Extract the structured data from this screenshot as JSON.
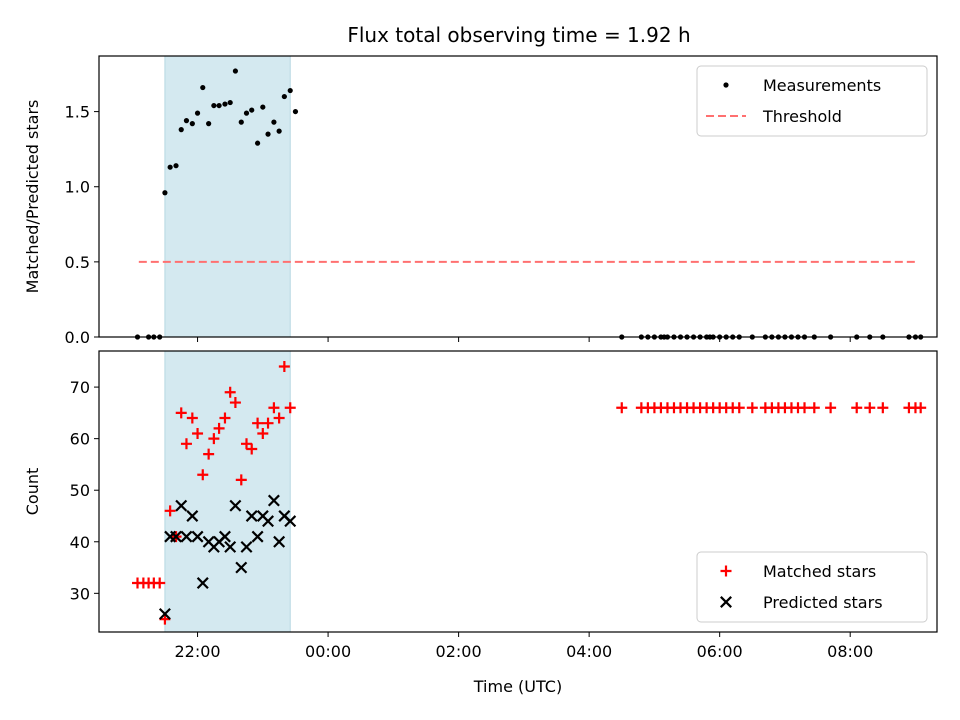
{
  "chart_data": [
    {
      "type": "scatter",
      "title": "Flux total observing time = 1.92 h",
      "ylabel": "Matched/Predicted stars",
      "xlabel": "",
      "xlim": [
        20.49,
        33.33
      ],
      "ylim": [
        0,
        1.87
      ],
      "yticks": [
        0.0,
        0.5,
        1.0,
        1.5
      ],
      "yticklabels": [
        "0.0",
        "0.5",
        "1.0",
        "1.5"
      ],
      "xticks": [
        22,
        24,
        26,
        28,
        30,
        32
      ],
      "show_xticklabels": false,
      "observing_window": [
        21.5,
        23.42
      ],
      "window_color": "#d4e9f0",
      "legend_position": "upper right",
      "series": [
        {
          "name": "Measurements",
          "kind": "dots",
          "color": "#000000",
          "points": [
            [
              21.08,
              0.0
            ],
            [
              21.25,
              0.0
            ],
            [
              21.33,
              0.0
            ],
            [
              21.42,
              0.0
            ],
            [
              21.5,
              0.96
            ],
            [
              21.58,
              1.13
            ],
            [
              21.67,
              1.14
            ],
            [
              21.75,
              1.38
            ],
            [
              21.83,
              1.44
            ],
            [
              21.92,
              1.42
            ],
            [
              22.0,
              1.49
            ],
            [
              22.08,
              1.66
            ],
            [
              22.17,
              1.42
            ],
            [
              22.25,
              1.54
            ],
            [
              22.33,
              1.54
            ],
            [
              22.42,
              1.55
            ],
            [
              22.5,
              1.56
            ],
            [
              22.58,
              1.77
            ],
            [
              22.67,
              1.43
            ],
            [
              22.75,
              1.49
            ],
            [
              22.83,
              1.51
            ],
            [
              22.92,
              1.29
            ],
            [
              23.0,
              1.53
            ],
            [
              23.08,
              1.35
            ],
            [
              23.17,
              1.43
            ],
            [
              23.25,
              1.37
            ],
            [
              23.33,
              1.6
            ],
            [
              23.42,
              1.64
            ],
            [
              23.5,
              1.5
            ],
            [
              28.5,
              0.0
            ],
            [
              28.8,
              0.0
            ],
            [
              28.9,
              0.0
            ],
            [
              29.0,
              0.0
            ],
            [
              29.1,
              0.0
            ],
            [
              29.15,
              0.0
            ],
            [
              29.2,
              0.0
            ],
            [
              29.3,
              0.0
            ],
            [
              29.4,
              0.0
            ],
            [
              29.5,
              0.0
            ],
            [
              29.6,
              0.0
            ],
            [
              29.7,
              0.0
            ],
            [
              29.8,
              0.0
            ],
            [
              29.85,
              0.0
            ],
            [
              29.9,
              0.0
            ],
            [
              30.0,
              0.0
            ],
            [
              30.1,
              0.0
            ],
            [
              30.2,
              0.0
            ],
            [
              30.3,
              0.0
            ],
            [
              30.5,
              0.0
            ],
            [
              30.7,
              0.0
            ],
            [
              30.8,
              0.0
            ],
            [
              30.9,
              0.0
            ],
            [
              31.0,
              0.0
            ],
            [
              31.1,
              0.0
            ],
            [
              31.2,
              0.0
            ],
            [
              31.3,
              0.0
            ],
            [
              31.45,
              0.0
            ],
            [
              31.7,
              0.0
            ],
            [
              32.1,
              0.0
            ],
            [
              32.3,
              0.0
            ],
            [
              32.5,
              0.0
            ],
            [
              32.9,
              0.0
            ],
            [
              33.0,
              0.0
            ],
            [
              33.08,
              0.0
            ]
          ]
        },
        {
          "name": "Threshold",
          "kind": "dashed-line",
          "color": "#ff7070",
          "points": [
            [
              21.1,
              0.5
            ],
            [
              33.0,
              0.5
            ]
          ]
        }
      ]
    },
    {
      "type": "scatter",
      "title": "",
      "ylabel": "Count",
      "xlabel": "Time (UTC)",
      "xlim": [
        20.49,
        33.33
      ],
      "ylim": [
        22.5,
        77
      ],
      "yticks": [
        30,
        40,
        50,
        60,
        70
      ],
      "yticklabels": [
        "30",
        "40",
        "50",
        "60",
        "70"
      ],
      "xticks": [
        22,
        24,
        26,
        28,
        30,
        32
      ],
      "xticklabels": [
        "22:00",
        "00:00",
        "02:00",
        "04:00",
        "06:00",
        "08:00"
      ],
      "observing_window": [
        21.5,
        23.42
      ],
      "window_color": "#d4e9f0",
      "legend_position": "lower right",
      "series": [
        {
          "name": "Matched stars",
          "kind": "plus",
          "color": "#ff0000",
          "points": [
            [
              21.08,
              32
            ],
            [
              21.17,
              32
            ],
            [
              21.25,
              32
            ],
            [
              21.33,
              32
            ],
            [
              21.42,
              32
            ],
            [
              21.5,
              25
            ],
            [
              21.58,
              46
            ],
            [
              21.67,
              41
            ],
            [
              21.75,
              65
            ],
            [
              21.83,
              59
            ],
            [
              21.92,
              64
            ],
            [
              22.0,
              61
            ],
            [
              22.08,
              53
            ],
            [
              22.17,
              57
            ],
            [
              22.25,
              60
            ],
            [
              22.33,
              62
            ],
            [
              22.42,
              64
            ],
            [
              22.5,
              69
            ],
            [
              22.58,
              67
            ],
            [
              22.67,
              52
            ],
            [
              22.75,
              59
            ],
            [
              22.83,
              58
            ],
            [
              22.92,
              63
            ],
            [
              23.0,
              61
            ],
            [
              23.08,
              63
            ],
            [
              23.17,
              66
            ],
            [
              23.25,
              64
            ],
            [
              23.33,
              74
            ],
            [
              23.42,
              66
            ],
            [
              28.5,
              66
            ],
            [
              28.8,
              66
            ],
            [
              28.9,
              66
            ],
            [
              29.0,
              66
            ],
            [
              29.1,
              66
            ],
            [
              29.2,
              66
            ],
            [
              29.3,
              66
            ],
            [
              29.4,
              66
            ],
            [
              29.5,
              66
            ],
            [
              29.6,
              66
            ],
            [
              29.7,
              66
            ],
            [
              29.8,
              66
            ],
            [
              29.9,
              66
            ],
            [
              30.0,
              66
            ],
            [
              30.1,
              66
            ],
            [
              30.2,
              66
            ],
            [
              30.3,
              66
            ],
            [
              30.5,
              66
            ],
            [
              30.7,
              66
            ],
            [
              30.8,
              66
            ],
            [
              30.9,
              66
            ],
            [
              31.0,
              66
            ],
            [
              31.1,
              66
            ],
            [
              31.2,
              66
            ],
            [
              31.3,
              66
            ],
            [
              31.45,
              66
            ],
            [
              31.7,
              66
            ],
            [
              32.1,
              66
            ],
            [
              32.3,
              66
            ],
            [
              32.5,
              66
            ],
            [
              32.9,
              66
            ],
            [
              33.0,
              66
            ],
            [
              33.08,
              66
            ]
          ]
        },
        {
          "name": "Predicted stars",
          "kind": "x",
          "color": "#000000",
          "points": [
            [
              21.5,
              26
            ],
            [
              21.58,
              41
            ],
            [
              21.67,
              41
            ],
            [
              21.75,
              47
            ],
            [
              21.83,
              41
            ],
            [
              21.92,
              45
            ],
            [
              22.0,
              41
            ],
            [
              22.08,
              32
            ],
            [
              22.17,
              40
            ],
            [
              22.25,
              39
            ],
            [
              22.33,
              40
            ],
            [
              22.42,
              41
            ],
            [
              22.5,
              39
            ],
            [
              22.58,
              47
            ],
            [
              22.67,
              35
            ],
            [
              22.75,
              39
            ],
            [
              22.83,
              45
            ],
            [
              22.92,
              41
            ],
            [
              23.0,
              45
            ],
            [
              23.08,
              44
            ],
            [
              23.17,
              48
            ],
            [
              23.25,
              40
            ],
            [
              23.33,
              45
            ],
            [
              23.42,
              44
            ]
          ]
        }
      ]
    }
  ]
}
